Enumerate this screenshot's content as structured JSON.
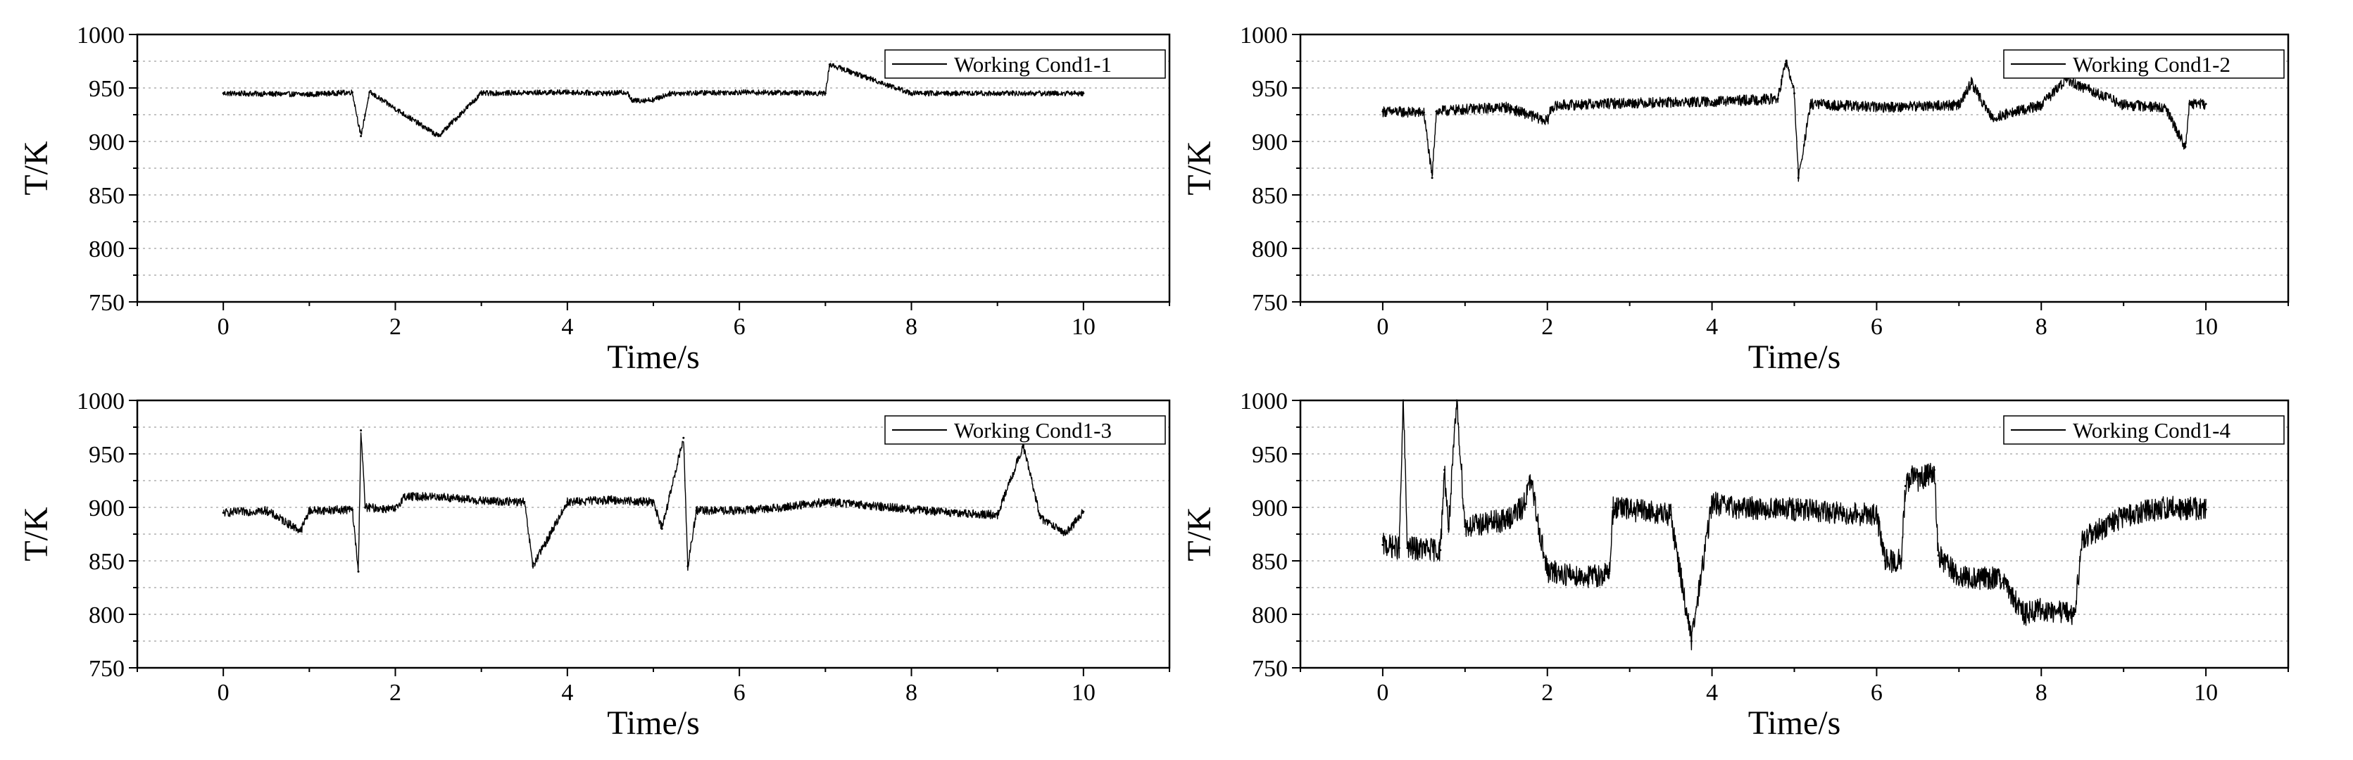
{
  "figure": {
    "background": "#ffffff",
    "line_color": "#000000",
    "grid_color": "#b0b0b0"
  },
  "chart_data": [
    {
      "type": "line",
      "xlabel": "Time/s",
      "ylabel": "T/K",
      "xlim": [
        -1,
        11
      ],
      "ylim": [
        750,
        1000
      ],
      "xticks": [
        "0",
        "2",
        "4",
        "6",
        "8",
        "10"
      ],
      "yticks": [
        "750",
        "800",
        "850",
        "900",
        "950",
        "1000"
      ],
      "grid": "horizontal dotted",
      "legend_position": "top-right",
      "series": [
        {
          "name": "Working Cond1-1",
          "x": [
            0.0,
            1.0,
            1.5,
            1.6,
            1.7,
            2.5,
            3.0,
            4.0,
            4.5,
            4.7,
            4.75,
            5.0,
            5.2,
            6.0,
            7.0,
            7.05,
            8.0,
            9.0,
            10.0
          ],
          "y": [
            945,
            944,
            946,
            905,
            946,
            905,
            945,
            946,
            945,
            946,
            938,
            939,
            945,
            946,
            945,
            972,
            945,
            945,
            945
          ]
        },
        {
          "name": "Working Cond1-2",
          "x": [
            0.0,
            0.5,
            0.6,
            0.65,
            1.0,
            1.5,
            2.0,
            2.05,
            2.2,
            3.0,
            4.0,
            4.8,
            4.9,
            5.0,
            5.05,
            5.2,
            6.0,
            7.0,
            7.15,
            7.4,
            8.0,
            8.3,
            9.0,
            9.5,
            9.75,
            9.8,
            10.0
          ],
          "y": [
            928,
            927,
            866,
            928,
            930,
            932,
            919,
            932,
            934,
            936,
            937,
            940,
            975,
            945,
            866,
            935,
            932,
            934,
            955,
            922,
            934,
            958,
            934,
            932,
            895,
            935,
            935
          ]
        },
        {
          "name": "Working Cond1-3",
          "x": [
            0.0,
            0.5,
            0.9,
            1.0,
            1.5,
            1.57,
            1.6,
            1.65,
            2.0,
            2.1,
            2.5,
            3.0,
            3.5,
            3.6,
            4.0,
            4.5,
            5.0,
            5.1,
            5.35,
            5.4,
            5.5,
            6.0,
            6.5,
            7.0,
            7.5,
            8.0,
            8.5,
            9.0,
            9.3,
            9.5,
            9.8,
            10.0
          ],
          "y": [
            895,
            897,
            878,
            897,
            898,
            840,
            972,
            900,
            898,
            910,
            910,
            906,
            905,
            845,
            905,
            907,
            905,
            880,
            965,
            845,
            897,
            897,
            900,
            905,
            902,
            898,
            895,
            893,
            958,
            890,
            876,
            896
          ]
        },
        {
          "name": "Working Cond1-4",
          "x": [
            0.0,
            0.2,
            0.25,
            0.3,
            0.7,
            0.75,
            0.8,
            0.9,
            1.0,
            1.5,
            1.7,
            1.8,
            1.9,
            2.0,
            2.5,
            2.75,
            2.8,
            3.5,
            3.75,
            4.0,
            4.2,
            4.3,
            5.0,
            5.5,
            6.0,
            6.1,
            6.3,
            6.35,
            6.45,
            6.5,
            6.7,
            6.75,
            7.0,
            7.5,
            7.8,
            8.0,
            8.4,
            8.5,
            9.0,
            9.5,
            10.0
          ],
          "y": [
            865,
            862,
            1000,
            862,
            860,
            935,
            880,
            1000,
            882,
            888,
            900,
            925,
            880,
            840,
            835,
            838,
            900,
            893,
            775,
            905,
            900,
            900,
            898,
            895,
            893,
            850,
            850,
            920,
            930,
            925,
            935,
            855,
            835,
            833,
            800,
            805,
            800,
            870,
            892,
            900,
            898
          ]
        }
      ]
    }
  ]
}
